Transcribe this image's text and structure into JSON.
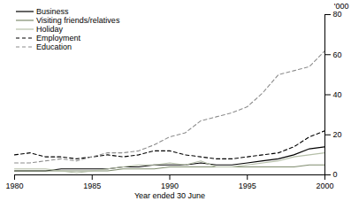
{
  "chart_data": {
    "type": "line",
    "x_label": "Year ended 30 June",
    "y_label": "'000",
    "x": [
      1980,
      1981,
      1982,
      1983,
      1984,
      1985,
      1986,
      1987,
      1988,
      1989,
      1990,
      1991,
      1992,
      1993,
      1994,
      1995,
      1996,
      1997,
      1998,
      1999,
      2000
    ],
    "xlim": [
      1980,
      2000
    ],
    "xticks": [
      1980,
      1985,
      1990,
      1995,
      2000
    ],
    "ylim": [
      0,
      80
    ],
    "yticks": [
      0,
      20,
      40,
      60,
      80
    ],
    "legend": "top-left",
    "series": [
      {
        "name": "Business",
        "color": "#000000",
        "line_style": "solid",
        "values": [
          2,
          2,
          2,
          3,
          3,
          3,
          3,
          4,
          4,
          5,
          5,
          5,
          6,
          5,
          5,
          6,
          7,
          8,
          10,
          13,
          14
        ]
      },
      {
        "name": "Visiting friends/relatives",
        "color": "#7f8c6e",
        "line_style": "solid",
        "values": [
          2,
          2,
          2,
          2,
          2,
          2,
          2,
          3,
          3,
          3,
          4,
          4,
          4,
          4,
          4,
          4,
          4,
          4,
          4,
          5,
          5
        ]
      },
      {
        "name": "Holiday",
        "color": "#b5bfa8",
        "line_style": "solid",
        "values": [
          3,
          3,
          3,
          2,
          1,
          2,
          3,
          4,
          5,
          5,
          6,
          5,
          7,
          4,
          4,
          5,
          6,
          7,
          9,
          10,
          11
        ]
      },
      {
        "name": "Employment",
        "color": "#000000",
        "line_style": "dashed",
        "values": [
          10,
          11,
          9,
          9,
          8,
          9,
          10,
          9,
          10,
          12,
          12,
          10,
          9,
          8,
          8,
          9,
          10,
          11,
          14,
          19,
          22
        ]
      },
      {
        "name": "Education",
        "color": "#8c8c8c",
        "line_style": "dashed",
        "values": [
          6,
          6,
          7,
          8,
          7,
          9,
          11,
          11,
          12,
          15,
          19,
          21,
          27,
          29,
          31,
          34,
          41,
          50,
          52,
          54,
          62
        ]
      }
    ]
  }
}
